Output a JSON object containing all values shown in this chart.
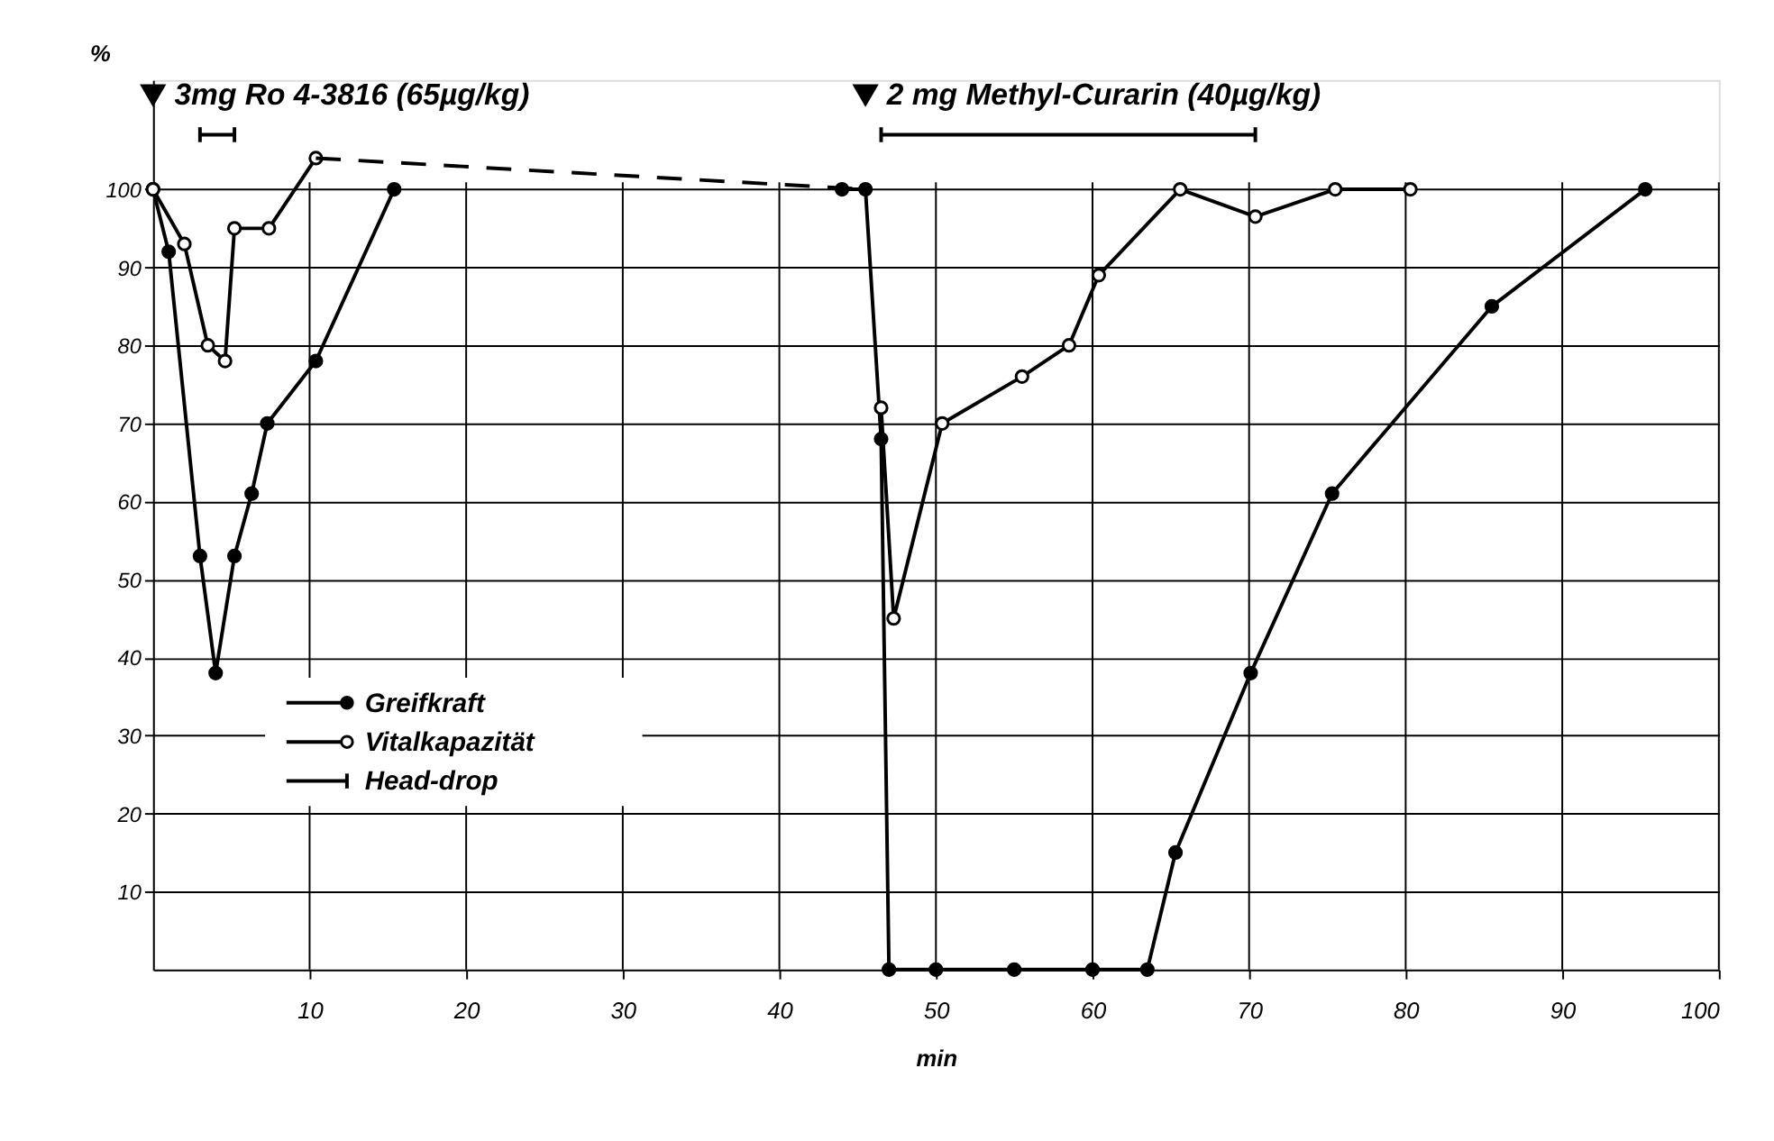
{
  "chart_data": {
    "type": "line",
    "xlabel": "min",
    "ylabel": "%",
    "xlim": [
      0,
      100
    ],
    "xticks": [
      10,
      20,
      30,
      40,
      50,
      60,
      70,
      80,
      90,
      100
    ],
    "ylim": [
      0,
      114
    ],
    "yticks": [
      10,
      20,
      30,
      40,
      50,
      60,
      70,
      80,
      90,
      100
    ],
    "grid": true,
    "legend": "bottom left",
    "marker": "circle",
    "line_style": "solid",
    "series": [
      {
        "name": "Greifkraft",
        "color": "#000000",
        "x": [
          0,
          1,
          3,
          4,
          5.2,
          6.3,
          7.3,
          10.4,
          15.4,
          null,
          44,
          45.5,
          46.5,
          47,
          50,
          55,
          60,
          63.5,
          65.3,
          70.1,
          75.3,
          85.5,
          95.3
        ],
        "values": [
          100,
          92,
          53,
          38,
          53,
          61,
          70,
          78,
          100,
          null,
          100,
          100,
          68,
          0,
          0,
          0,
          0,
          0,
          15,
          38,
          61,
          85,
          100
        ]
      },
      {
        "name": "Vitalkapazität",
        "color": "#000000",
        "x": [
          0,
          2,
          3.5,
          4.6,
          5.2,
          7.4,
          10.4,
          null,
          46.5,
          47.3,
          50.4,
          55.5,
          58.5,
          60.4,
          65.6,
          70.4,
          75.5,
          80.3
        ],
        "values": [
          100,
          93,
          80,
          78,
          95,
          95,
          104,
          null,
          72,
          45,
          70,
          76,
          80,
          89,
          100,
          96.5,
          100,
          100
        ]
      },
      {
        "color": "#000000",
        "line_style": "dashed",
        "marker": "none",
        "x": [
          10.4,
          45.5
        ],
        "values": [
          104,
          100
        ]
      },
      {
        "name": "Head-drop",
        "color": "#000000",
        "marker": "none",
        "x": [
          3,
          5.2,
          null,
          46.5,
          70.4
        ],
        "values": [
          107,
          107,
          null,
          107,
          107
        ]
      }
    ],
    "annotations": [
      {
        "text": "3mg  Ro 4-3816 (65µg/kg)",
        "x": 0,
        "y": 112
      },
      {
        "text": "2 mg Methyl-Curarin (40µg/kg)",
        "x": 45.5,
        "y": 112
      }
    ]
  }
}
